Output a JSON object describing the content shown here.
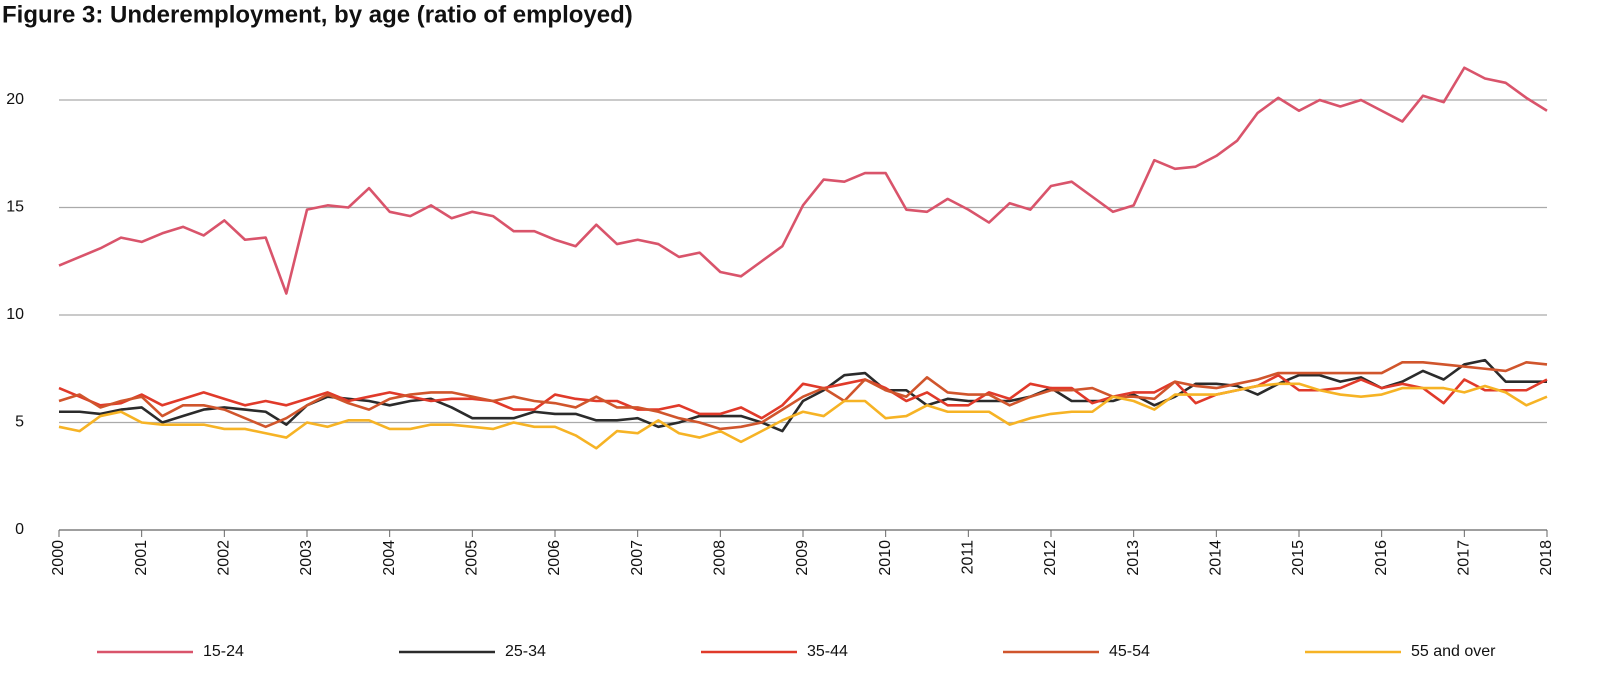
{
  "chart_data": {
    "type": "line",
    "title": "Figure 3: Underemployment, by age (ratio of employed)",
    "x": [
      2000,
      2000.25,
      2000.5,
      2000.75,
      2001,
      2001.25,
      2001.5,
      2001.75,
      2002,
      2002.25,
      2002.5,
      2002.75,
      2003,
      2003.25,
      2003.5,
      2003.75,
      2004,
      2004.25,
      2004.5,
      2004.75,
      2005,
      2005.25,
      2005.5,
      2005.75,
      2006,
      2006.25,
      2006.5,
      2006.75,
      2007,
      2007.25,
      2007.5,
      2007.75,
      2008,
      2008.25,
      2008.5,
      2008.75,
      2009,
      2009.25,
      2009.5,
      2009.75,
      2010,
      2010.25,
      2010.5,
      2010.75,
      2011,
      2011.25,
      2011.5,
      2011.75,
      2012,
      2012.25,
      2012.5,
      2012.75,
      2013,
      2013.25,
      2013.5,
      2013.75,
      2014,
      2014.25,
      2014.5,
      2014.75,
      2015,
      2015.25,
      2015.5,
      2015.75,
      2016,
      2016.25,
      2016.5,
      2016.75,
      2017,
      2017.25,
      2017.5,
      2017.75,
      2018
    ],
    "series": [
      {
        "name": "15-24",
        "color": "#d9546b",
        "values": [
          12.3,
          12.7,
          13.1,
          13.6,
          13.4,
          13.8,
          14.1,
          13.7,
          14.4,
          13.5,
          13.6,
          11.0,
          14.9,
          15.1,
          15.0,
          15.9,
          14.8,
          14.6,
          15.1,
          14.5,
          14.8,
          14.6,
          13.9,
          13.9,
          13.5,
          13.2,
          14.2,
          13.3,
          13.5,
          13.3,
          12.7,
          12.9,
          12.0,
          11.8,
          12.5,
          13.2,
          15.1,
          16.3,
          16.2,
          16.6,
          16.6,
          14.9,
          14.8,
          15.4,
          14.9,
          14.3,
          15.2,
          14.9,
          16.0,
          16.2,
          15.5,
          14.8,
          15.1,
          17.2,
          16.8,
          16.9,
          17.4,
          18.1,
          19.4,
          20.1,
          19.5,
          20.0,
          19.7,
          20.0,
          19.5,
          19.0,
          20.2,
          19.9,
          21.5,
          21.0,
          20.8,
          20.1,
          19.5
        ]
      },
      {
        "name": "25-34",
        "color": "#2b2b2b",
        "values": [
          5.5,
          5.5,
          5.4,
          5.6,
          5.7,
          5.0,
          5.3,
          5.6,
          5.7,
          5.6,
          5.5,
          4.9,
          5.8,
          6.2,
          6.1,
          6.0,
          5.8,
          6.0,
          6.1,
          5.7,
          5.2,
          5.2,
          5.2,
          5.5,
          5.4,
          5.4,
          5.1,
          5.1,
          5.2,
          4.8,
          5.0,
          5.3,
          5.3,
          5.3,
          5.0,
          4.6,
          6.0,
          6.5,
          7.2,
          7.3,
          6.5,
          6.5,
          5.8,
          6.1,
          6.0,
          6.0,
          6.0,
          6.2,
          6.6,
          6.0,
          6.0,
          6.0,
          6.3,
          5.8,
          6.2,
          6.8,
          6.8,
          6.7,
          6.3,
          6.8,
          7.2,
          7.2,
          6.9,
          7.1,
          6.6,
          6.9,
          7.4,
          7.0,
          7.7,
          7.9,
          6.9,
          6.9,
          6.9
        ]
      },
      {
        "name": "35-44",
        "color": "#e03a2a",
        "values": [
          6.6,
          6.2,
          5.8,
          5.9,
          6.3,
          5.8,
          6.1,
          6.4,
          6.1,
          5.8,
          6.0,
          5.8,
          6.1,
          6.4,
          6.0,
          6.2,
          6.4,
          6.2,
          6.0,
          6.1,
          6.1,
          6.0,
          5.6,
          5.6,
          6.3,
          6.1,
          6.0,
          6.0,
          5.6,
          5.6,
          5.8,
          5.4,
          5.4,
          5.7,
          5.2,
          5.8,
          6.8,
          6.6,
          6.8,
          7.0,
          6.6,
          6.0,
          6.4,
          5.8,
          5.8,
          6.4,
          6.1,
          6.8,
          6.6,
          6.6,
          5.9,
          6.2,
          6.4,
          6.4,
          6.9,
          5.9,
          6.3,
          6.5,
          6.7,
          7.2,
          6.5,
          6.5,
          6.6,
          7.0,
          6.6,
          6.8,
          6.6,
          5.9,
          7.0,
          6.5,
          6.5,
          6.5,
          7.0
        ]
      },
      {
        "name": "45-54",
        "color": "#d0552c",
        "values": [
          6.0,
          6.3,
          5.7,
          6.0,
          6.2,
          5.3,
          5.8,
          5.8,
          5.6,
          5.2,
          4.8,
          5.2,
          5.8,
          6.3,
          5.9,
          5.6,
          6.1,
          6.3,
          6.4,
          6.4,
          6.2,
          6.0,
          6.2,
          6.0,
          5.9,
          5.7,
          6.2,
          5.7,
          5.7,
          5.5,
          5.2,
          5.0,
          4.7,
          4.8,
          5.0,
          5.6,
          6.2,
          6.6,
          6.0,
          7.0,
          6.5,
          6.2,
          7.1,
          6.4,
          6.3,
          6.3,
          5.8,
          6.2,
          6.5,
          6.5,
          6.6,
          6.2,
          6.2,
          6.1,
          6.9,
          6.7,
          6.6,
          6.8,
          7.0,
          7.3,
          7.3,
          7.3,
          7.3,
          7.3,
          7.3,
          7.8,
          7.8,
          7.7,
          7.6,
          7.5,
          7.4,
          7.8,
          7.7
        ]
      },
      {
        "name": "55 and over",
        "color": "#f6b325",
        "values": [
          4.8,
          4.6,
          5.3,
          5.5,
          5.0,
          4.9,
          4.9,
          4.9,
          4.7,
          4.7,
          4.5,
          4.3,
          5.0,
          4.8,
          5.1,
          5.1,
          4.7,
          4.7,
          4.9,
          4.9,
          4.8,
          4.7,
          5.0,
          4.8,
          4.8,
          4.4,
          3.8,
          4.6,
          4.5,
          5.1,
          4.5,
          4.3,
          4.6,
          4.1,
          4.6,
          5.1,
          5.5,
          5.3,
          6.0,
          6.0,
          5.2,
          5.3,
          5.8,
          5.5,
          5.5,
          5.5,
          4.9,
          5.2,
          5.4,
          5.5,
          5.5,
          6.2,
          6.0,
          5.6,
          6.3,
          6.3,
          6.3,
          6.5,
          6.7,
          6.8,
          6.8,
          6.5,
          6.3,
          6.2,
          6.3,
          6.6,
          6.6,
          6.6,
          6.4,
          6.7,
          6.4,
          5.8,
          6.2
        ]
      }
    ],
    "xlim": [
      2000,
      2018
    ],
    "xticks": [
      2000,
      2001,
      2002,
      2003,
      2004,
      2005,
      2006,
      2007,
      2008,
      2009,
      2010,
      2011,
      2012,
      2013,
      2014,
      2015,
      2016,
      2017,
      2018
    ],
    "ylim": [
      0,
      22
    ],
    "yticks": [
      0,
      5,
      10,
      15,
      20
    ],
    "grid": true,
    "legend": "bottom"
  }
}
